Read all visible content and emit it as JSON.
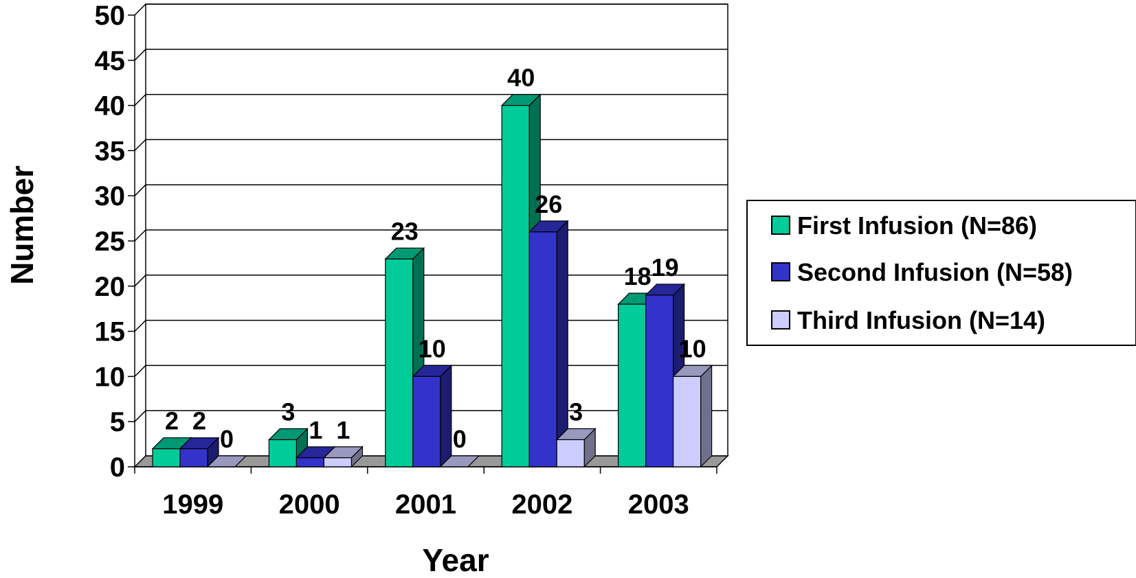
{
  "chart_data": {
    "type": "bar",
    "categories": [
      "1999",
      "2000",
      "2001",
      "2002",
      "2003"
    ],
    "series": [
      {
        "name": "First Infusion (N=86)",
        "values": [
          2,
          3,
          23,
          40,
          18
        ],
        "color": "#00CC99"
      },
      {
        "name": "Second Infusion (N=58)",
        "values": [
          2,
          1,
          10,
          26,
          19
        ],
        "color": "#3333CC"
      },
      {
        "name": "Third Infusion (N=14)",
        "values": [
          0,
          1,
          0,
          3,
          10
        ],
        "color": "#CCCCFF"
      }
    ],
    "y_ticks": [
      "0",
      "5",
      "10",
      "15",
      "20",
      "25",
      "30",
      "35",
      "40",
      "45",
      "50"
    ],
    "xlabel": "Year",
    "ylabel": "Number",
    "ylim": [
      0,
      50
    ],
    "grid": true,
    "legend_position": "right",
    "style": "3d-clustered-column"
  }
}
